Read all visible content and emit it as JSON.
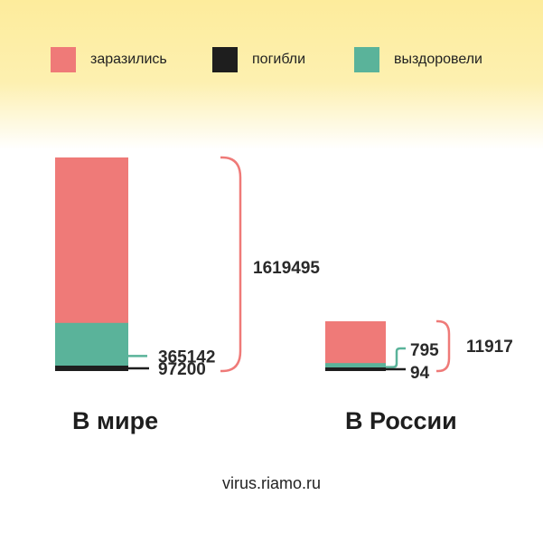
{
  "colors": {
    "infected": "#ef7a78",
    "died": "#1e1e1e",
    "recovered": "#5ab39a",
    "bracket": "#ef7a78"
  },
  "chart_data": {
    "type": "bar",
    "stacked": true,
    "categories": [
      "В мире",
      "В России"
    ],
    "series": [
      {
        "name": "заразились",
        "values": [
          1619495,
          11917
        ]
      },
      {
        "name": "погибли",
        "values": [
          97200,
          94
        ]
      },
      {
        "name": "выздоровели",
        "values": [
          365142,
          795
        ]
      }
    ],
    "value_labels": {
      "world": {
        "infected": "1619495",
        "recovered": "365142",
        "died": "97200"
      },
      "russia": {
        "infected": "11917",
        "recovered": "795",
        "died": "94"
      }
    },
    "legend_position": "top",
    "grid": false
  },
  "legend": [
    {
      "key": "infected",
      "label": "заразились"
    },
    {
      "key": "died",
      "label": "погибли"
    },
    {
      "key": "recovered",
      "label": "выздоровели"
    }
  ],
  "source": "virus.riamo.ru"
}
